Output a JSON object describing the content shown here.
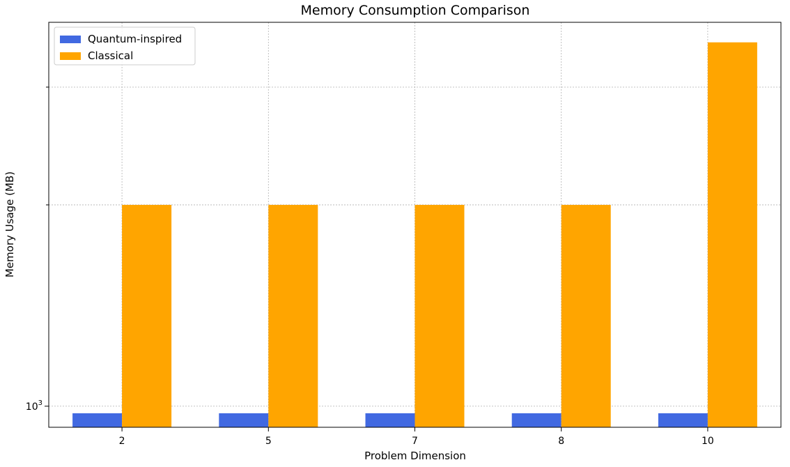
{
  "chart_data": {
    "type": "bar",
    "title": "Memory Consumption Comparison",
    "xlabel": "Problem Dimension",
    "ylabel": "Memory Usage (MB)",
    "y_scale": "log",
    "ylim": [
      930,
      3750
    ],
    "categories": [
      "2",
      "5",
      "7",
      "8",
      "10"
    ],
    "series": [
      {
        "name": "Quantum-inspired",
        "color": "#4169e1",
        "values": [
          976,
          976,
          976,
          976,
          976
        ]
      },
      {
        "name": "Classical",
        "color": "#ffa500",
        "values": [
          2000,
          2000,
          2000,
          2000,
          3500
        ]
      }
    ],
    "y_tick_labels": [
      {
        "value": 1000,
        "base": "10",
        "exp": "3"
      }
    ],
    "y_minor_ticks": [
      2000,
      3000,
      4000,
      5000,
      6000,
      7000,
      8000,
      9000
    ],
    "grid": true,
    "grid_style": "dotted",
    "legend_position": "upper-left"
  }
}
